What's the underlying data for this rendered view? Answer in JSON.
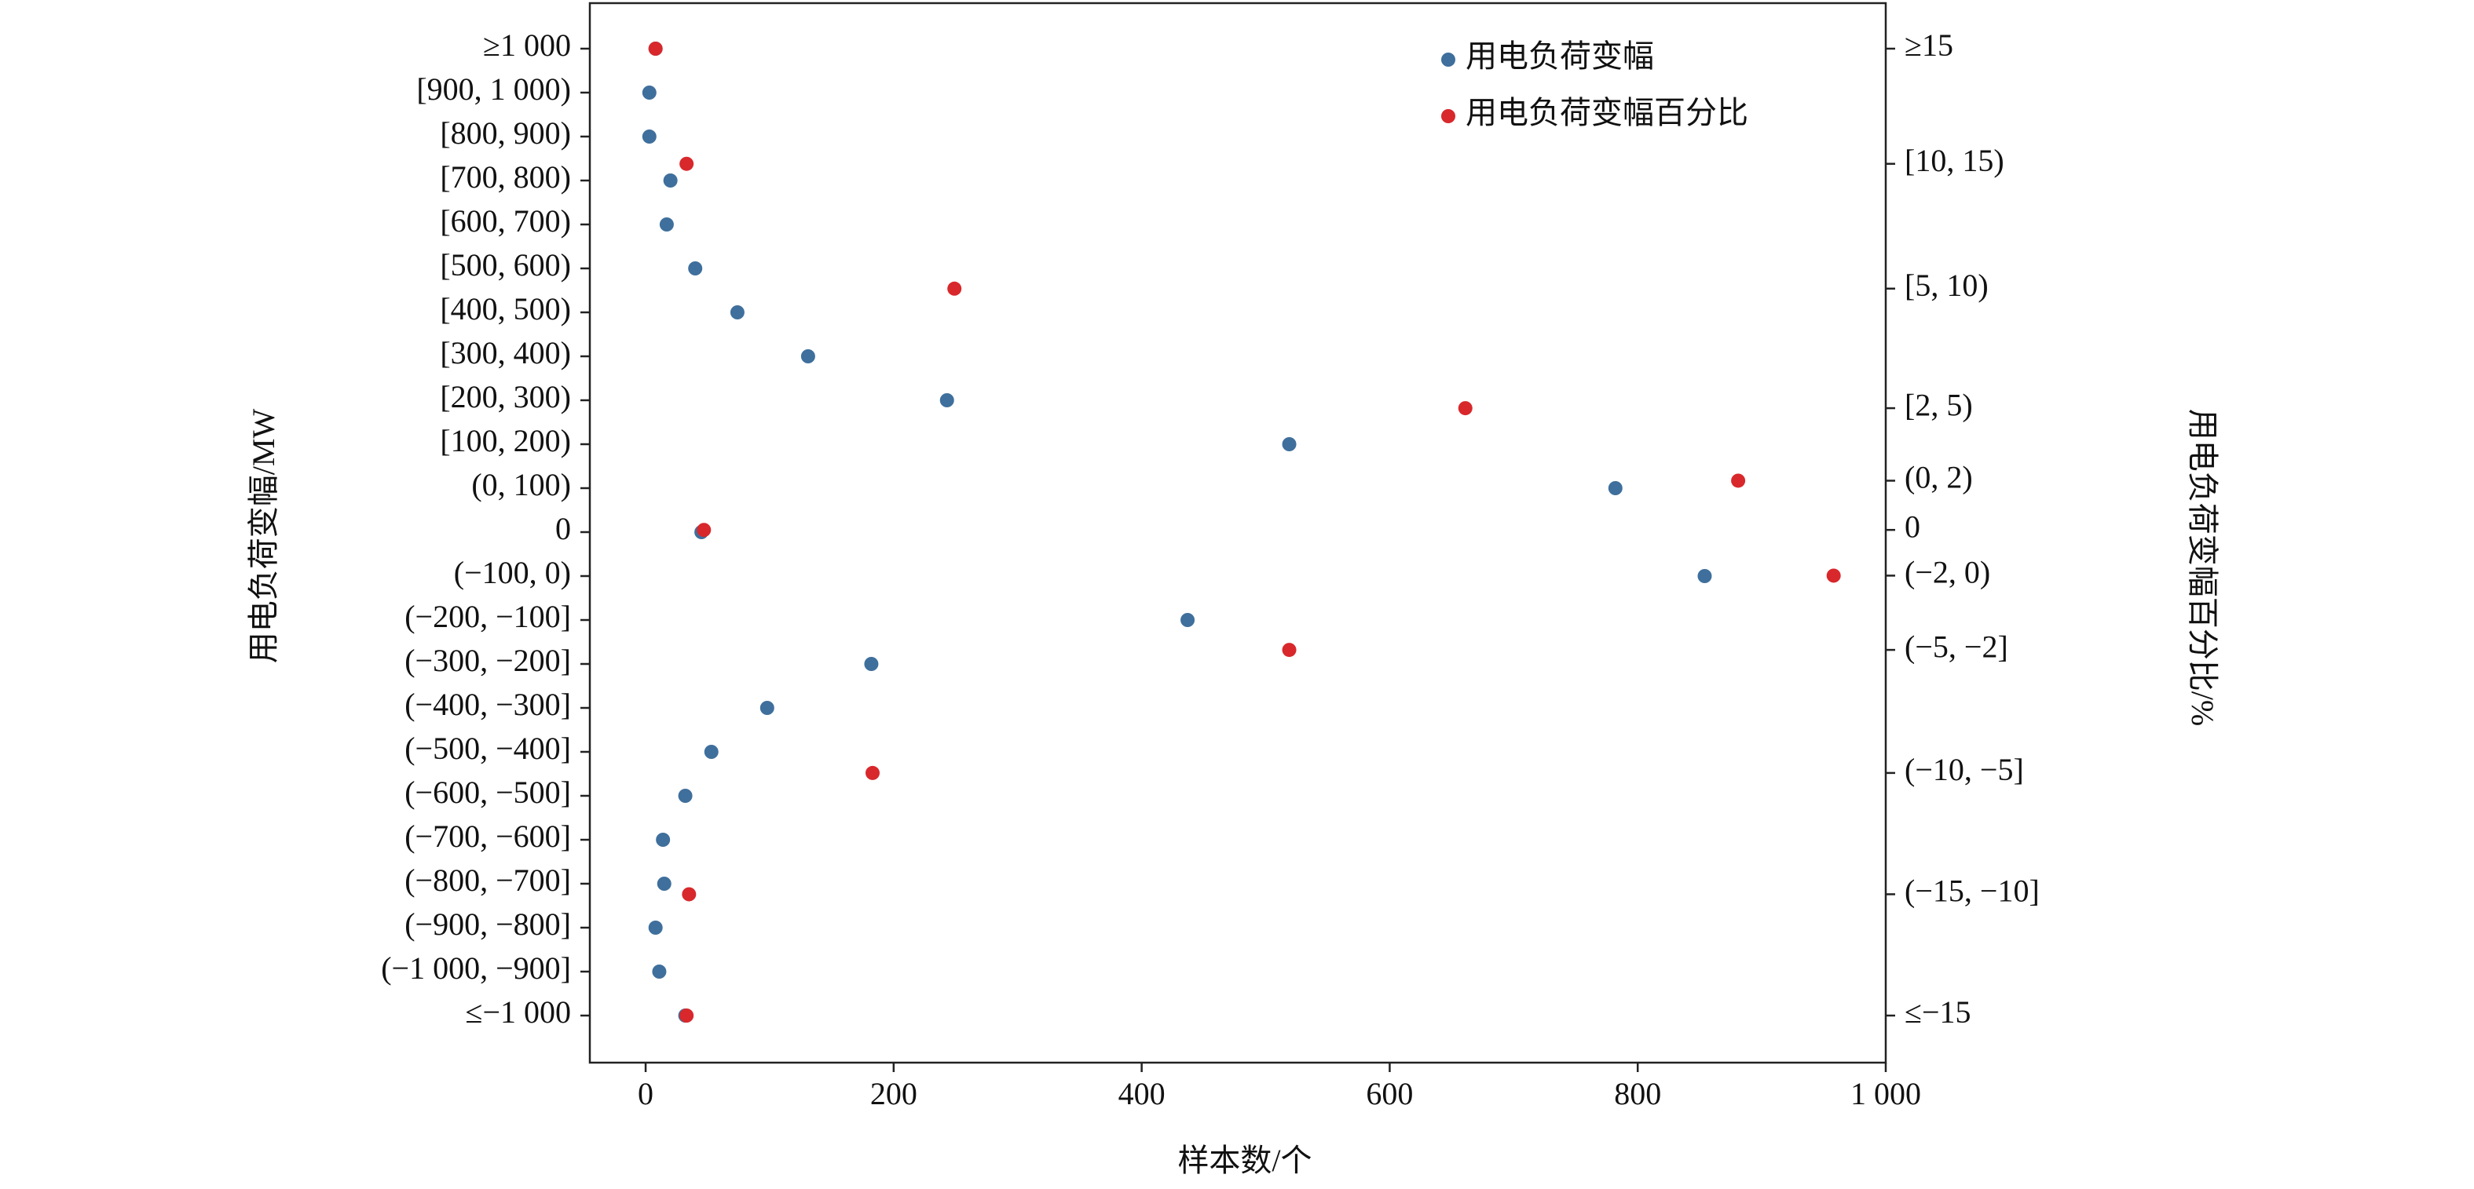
{
  "chart_data": {
    "type": "scatter",
    "xlabel": "样本数/个",
    "ylabel": "用电负荷变幅/MW",
    "y2label": "用电负荷变幅百分比/%",
    "xlim": [
      -45,
      1000
    ],
    "xticks": [
      0,
      200,
      400,
      600,
      800,
      {
        "value": 1000,
        "label": "1 000"
      }
    ],
    "categories": [
      "≥1 000",
      "[900, 1 000)",
      "[800, 900)",
      "[700, 800)",
      "[600, 700)",
      "[500, 600)",
      "[400, 500)",
      "[300, 400)",
      "[200, 300)",
      "[100, 200)",
      "(0, 100)",
      "0",
      "(−100, 0)",
      "(−200, −100]",
      "(−300, −200]",
      "(−400, −300]",
      "(−500, −400]",
      "(−600, −500]",
      "(−700, −600]",
      "(−800, −700]",
      "(−900, −800]",
      "(−1 000, −900]",
      "≤−1 000"
    ],
    "y2categories": [
      "≥15",
      "[10, 15)",
      "[5, 10)",
      "[2, 5)",
      "(0, 2)",
      "0",
      "(−2, 0)",
      "(−5, −2]",
      "(−10, −5]",
      "(−15, −10]",
      "≤−15"
    ],
    "legend": "upper right",
    "series": [
      {
        "name": "用电负荷变幅",
        "color": "#3f6f9c",
        "values": [
          8,
          3,
          3,
          20,
          17,
          40,
          74,
          131,
          243,
          519,
          782,
          45,
          854,
          437,
          182,
          98,
          53,
          32,
          14,
          15,
          8,
          11,
          32
        ]
      },
      {
        "name": "用电负荷变幅百分比",
        "color": "#d8282c",
        "axis": "y2",
        "values": [
          8,
          33,
          249,
          661,
          881,
          47,
          958,
          519,
          183,
          35,
          33
        ]
      }
    ]
  }
}
